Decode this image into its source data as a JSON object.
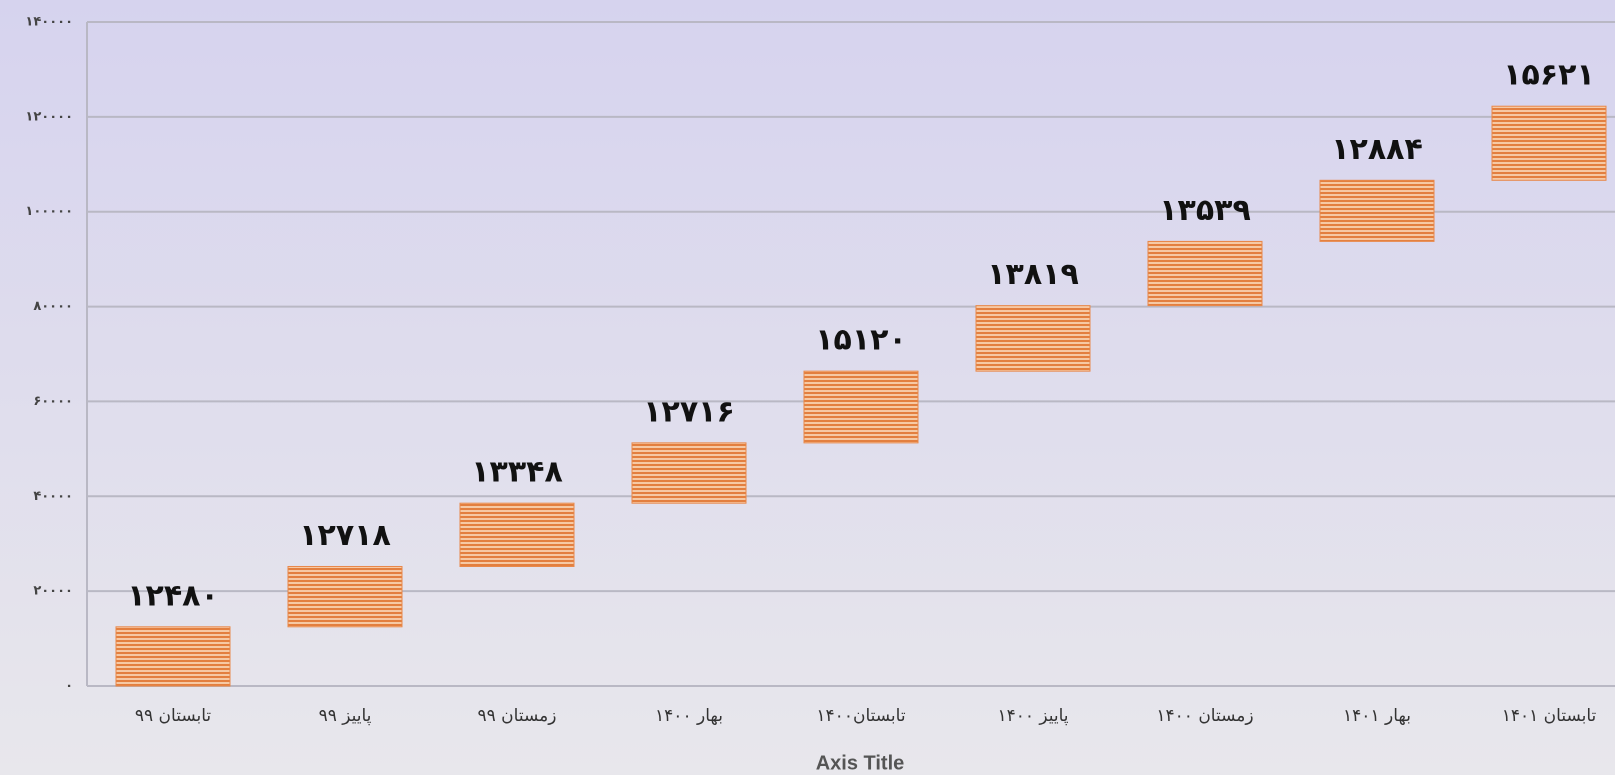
{
  "chart_data": {
    "type": "waterfall",
    "x_axis_label": "Axis Title",
    "categories": [
      "تابستان ۹۹",
      "پاییز ۹۹",
      "زمستان ۹۹",
      "بهار ۱۴۰۰",
      "تابستان۱۴۰۰",
      "پاییز ۱۴۰۰",
      "زمستان ۱۴۰۰",
      "بهار ۱۴۰۱",
      "تابستان ۱۴۰۱"
    ],
    "values": [
      12480,
      12718,
      13348,
      12716,
      15120,
      13819,
      13539,
      12884,
      15621
    ],
    "value_labels": [
      "۱۲۴۸۰",
      "۱۲۷۱۸",
      "۱۳۳۴۸",
      "۱۲۷۱۶",
      "۱۵۱۲۰",
      "۱۳۸۱۹",
      "۱۳۵۳۹",
      "۱۲۸۸۴",
      "۱۵۶۲۱"
    ],
    "color": "#e8884a",
    "ylim": [
      0,
      140000
    ],
    "yticks": [
      {
        "value": 0,
        "label": "۰"
      },
      {
        "value": 20000,
        "label": "۲۰۰۰۰"
      },
      {
        "value": 40000,
        "label": "۴۰۰۰۰"
      },
      {
        "value": 60000,
        "label": "۶۰۰۰۰"
      },
      {
        "value": 80000,
        "label": "۸۰۰۰۰"
      },
      {
        "value": 100000,
        "label": "۱۰۰۰۰۰"
      },
      {
        "value": 120000,
        "label": "۱۲۰۰۰۰"
      },
      {
        "value": 140000,
        "label": "۱۴۰۰۰۰"
      }
    ],
    "grid": true
  }
}
